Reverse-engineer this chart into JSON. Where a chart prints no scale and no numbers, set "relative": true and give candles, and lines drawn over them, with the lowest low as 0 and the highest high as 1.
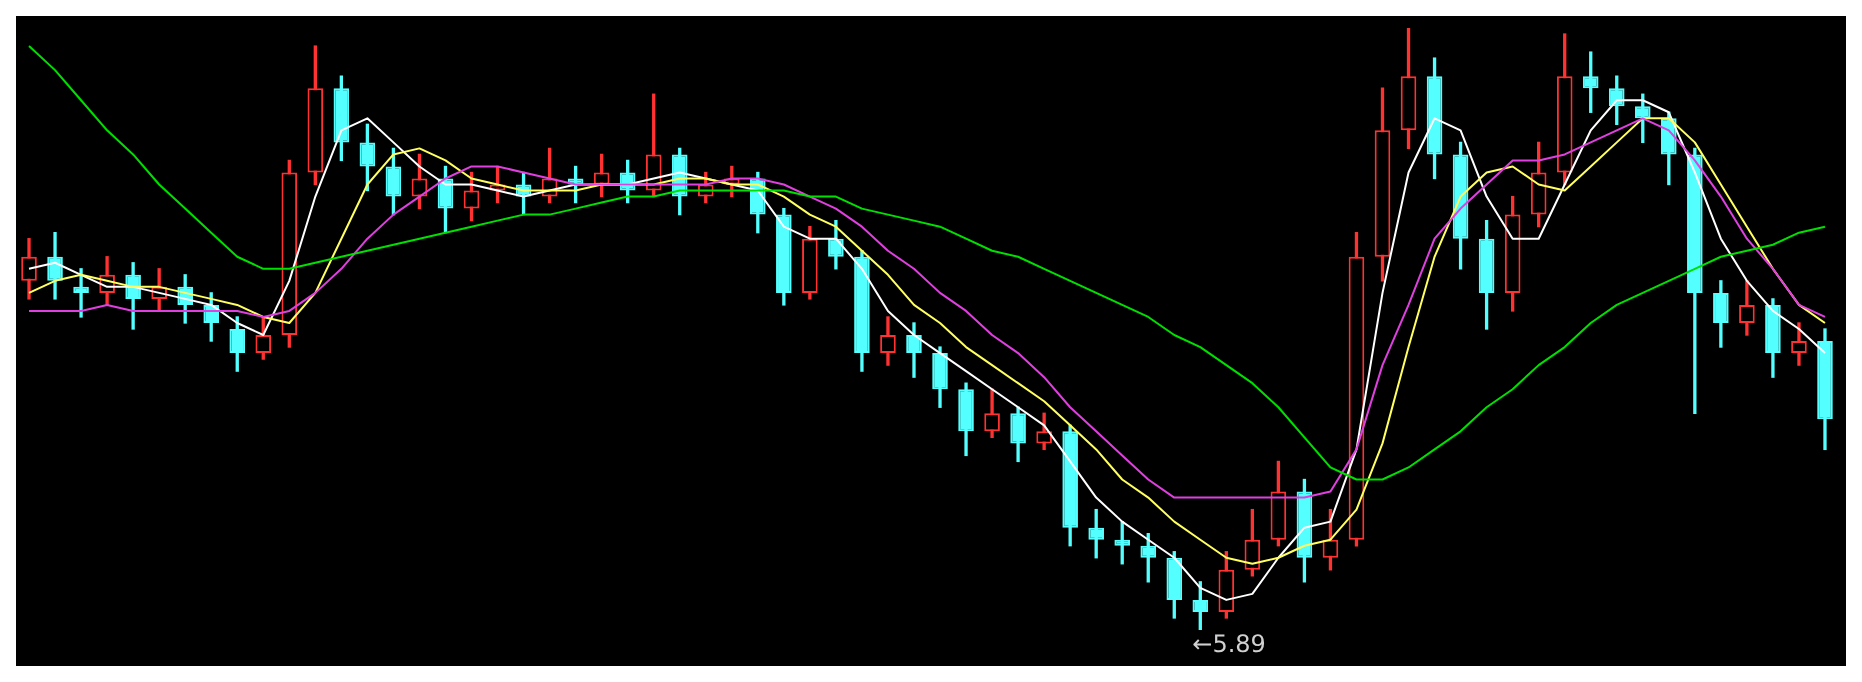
{
  "chart_data": {
    "type": "candlestick",
    "relative": true,
    "categories": [
      null,
      null,
      null,
      null,
      null,
      null,
      null,
      null,
      null,
      null,
      null,
      null,
      null,
      null,
      null,
      null,
      null,
      null,
      null,
      null,
      null,
      null,
      null,
      null,
      null,
      null,
      null,
      null,
      null,
      null,
      null,
      null,
      null,
      null,
      null,
      null,
      null,
      null,
      null,
      null,
      null,
      null,
      null,
      null,
      null,
      null,
      null,
      null,
      null,
      null,
      null,
      null,
      null,
      null,
      null,
      null,
      null,
      null,
      null,
      null,
      null,
      null,
      null,
      null,
      null,
      null,
      null,
      null,
      null,
      null
    ],
    "annotations": [
      "←5.89"
    ],
    "series": [
      {
        "type": "line",
        "color": "#00e000",
        "values": [
          0.97,
          0.93,
          0.88,
          0.83,
          0.79,
          0.74,
          0.7,
          0.66,
          0.62,
          0.6,
          0.6,
          0.61,
          0.62,
          0.63,
          0.64,
          0.65,
          0.66,
          0.67,
          0.68,
          0.69,
          0.69,
          0.7,
          0.71,
          0.72,
          0.72,
          0.73,
          0.73,
          0.73,
          0.73,
          0.73,
          0.72,
          0.72,
          0.7,
          0.69,
          0.68,
          0.67,
          0.65,
          0.63,
          0.62,
          0.6,
          0.58,
          0.56,
          0.54,
          0.52,
          0.49,
          0.47,
          0.44,
          0.41,
          0.37,
          0.32,
          0.27,
          0.25,
          0.25,
          0.27,
          0.3,
          0.33,
          0.37,
          0.4,
          0.44,
          0.47,
          0.51,
          0.54,
          0.56,
          0.58,
          0.6,
          0.62,
          0.63,
          0.64,
          0.66,
          0.67
        ]
      },
      {
        "type": "line",
        "color": "#e040e0",
        "values": [
          0.53,
          0.53,
          0.53,
          0.54,
          0.53,
          0.53,
          0.53,
          0.53,
          0.53,
          0.52,
          0.53,
          0.56,
          0.6,
          0.65,
          0.69,
          0.72,
          0.75,
          0.77,
          0.77,
          0.76,
          0.75,
          0.74,
          0.74,
          0.74,
          0.74,
          0.74,
          0.74,
          0.75,
          0.75,
          0.74,
          0.72,
          0.7,
          0.67,
          0.63,
          0.6,
          0.56,
          0.53,
          0.49,
          0.46,
          0.42,
          0.37,
          0.33,
          0.29,
          0.25,
          0.22,
          0.22,
          0.22,
          0.22,
          0.22,
          0.22,
          0.23,
          0.3,
          0.44,
          0.54,
          0.65,
          0.7,
          0.74,
          0.78,
          0.78,
          0.79,
          0.81,
          0.83,
          0.85,
          0.83,
          0.78,
          0.72,
          0.65,
          0.6,
          0.54,
          0.52
        ]
      },
      {
        "type": "line",
        "color": "#ffff60",
        "values": [
          0.56,
          0.58,
          0.59,
          0.58,
          0.57,
          0.57,
          0.56,
          0.55,
          0.54,
          0.52,
          0.51,
          0.56,
          0.65,
          0.74,
          0.79,
          0.8,
          0.78,
          0.75,
          0.74,
          0.73,
          0.73,
          0.73,
          0.74,
          0.74,
          0.74,
          0.75,
          0.75,
          0.74,
          0.74,
          0.72,
          0.69,
          0.67,
          0.63,
          0.59,
          0.54,
          0.51,
          0.47,
          0.44,
          0.41,
          0.38,
          0.34,
          0.3,
          0.25,
          0.22,
          0.18,
          0.15,
          0.12,
          0.11,
          0.12,
          0.14,
          0.15,
          0.2,
          0.31,
          0.47,
          0.62,
          0.72,
          0.76,
          0.77,
          0.74,
          0.73,
          0.77,
          0.81,
          0.85,
          0.85,
          0.81,
          0.74,
          0.67,
          0.6,
          0.54,
          0.51
        ]
      },
      {
        "type": "line",
        "color": "#ffffff",
        "values": [
          0.6,
          0.61,
          0.59,
          0.57,
          0.57,
          0.56,
          0.55,
          0.54,
          0.51,
          0.49,
          0.58,
          0.72,
          0.83,
          0.85,
          0.81,
          0.77,
          0.74,
          0.74,
          0.73,
          0.72,
          0.73,
          0.74,
          0.74,
          0.74,
          0.75,
          0.76,
          0.75,
          0.74,
          0.73,
          0.67,
          0.65,
          0.65,
          0.6,
          0.53,
          0.49,
          0.46,
          0.43,
          0.4,
          0.37,
          0.34,
          0.28,
          0.22,
          0.18,
          0.15,
          0.12,
          0.07,
          0.05,
          0.06,
          0.12,
          0.17,
          0.18,
          0.3,
          0.56,
          0.76,
          0.85,
          0.83,
          0.72,
          0.65,
          0.65,
          0.74,
          0.83,
          0.88,
          0.88,
          0.86,
          0.76,
          0.65,
          0.58,
          0.53,
          0.5,
          0.46
        ]
      },
      {
        "type": "candlestick",
        "colors": [
          "#ff3232",
          "#54ffff",
          "#54ffff",
          "#ff3232",
          "#54ffff",
          "#ff3232",
          "#54ffff",
          "#54ffff",
          "#54ffff",
          "#ff3232",
          "#ff3232",
          "#ff3232",
          "#54ffff",
          "#54ffff",
          "#54ffff",
          "#ff3232",
          "#54ffff",
          "#ff3232",
          "#ff3232",
          "#54ffff",
          "#ff3232",
          "#54ffff",
          "#ff3232",
          "#54ffff",
          "#ff3232",
          "#54ffff",
          "#ff3232",
          "#ff3232",
          "#54ffff",
          "#54ffff",
          "#ff3232",
          "#54ffff",
          "#54ffff",
          "#ff3232",
          "#54ffff",
          "#54ffff",
          "#54ffff",
          "#ff3232",
          "#54ffff",
          "#ff3232",
          "#54ffff",
          "#54ffff",
          "#54ffff",
          "#54ffff",
          "#54ffff",
          "#54ffff",
          "#ff3232",
          "#ff3232",
          "#ff3232",
          "#54ffff",
          "#ff3232",
          "#ff3232",
          "#ff3232",
          "#ff3232",
          "#54ffff",
          "#54ffff",
          "#54ffff",
          "#ff3232",
          "#ff3232",
          "#ff3232",
          "#54ffff",
          "#54ffff",
          "#54ffff",
          "#54ffff",
          "#54ffff",
          "#54ffff",
          "#ff3232",
          "#54ffff",
          "#ff3232",
          "#54ffff"
        ],
        "ohlc": [
          [
            0.58,
            0.65,
            0.55,
            0.62
          ],
          [
            0.62,
            0.66,
            0.55,
            0.58
          ],
          [
            0.57,
            0.6,
            0.52,
            0.56
          ],
          [
            0.56,
            0.62,
            0.54,
            0.59
          ],
          [
            0.59,
            0.61,
            0.5,
            0.55
          ],
          [
            0.55,
            0.6,
            0.53,
            0.57
          ],
          [
            0.57,
            0.59,
            0.51,
            0.54
          ],
          [
            0.54,
            0.56,
            0.48,
            0.51
          ],
          [
            0.5,
            0.52,
            0.43,
            0.46
          ],
          [
            0.46,
            0.52,
            0.45,
            0.49
          ],
          [
            0.49,
            0.78,
            0.47,
            0.76
          ],
          [
            0.76,
            0.97,
            0.74,
            0.9
          ],
          [
            0.9,
            0.92,
            0.78,
            0.81
          ],
          [
            0.81,
            0.84,
            0.73,
            0.77
          ],
          [
            0.77,
            0.8,
            0.69,
            0.72
          ],
          [
            0.72,
            0.79,
            0.7,
            0.75
          ],
          [
            0.75,
            0.77,
            0.66,
            0.7
          ],
          [
            0.7,
            0.76,
            0.68,
            0.73
          ],
          [
            0.73,
            0.77,
            0.71,
            0.74
          ],
          [
            0.74,
            0.76,
            0.69,
            0.72
          ],
          [
            0.72,
            0.8,
            0.71,
            0.75
          ],
          [
            0.75,
            0.77,
            0.71,
            0.74
          ],
          [
            0.74,
            0.79,
            0.72,
            0.76
          ],
          [
            0.76,
            0.78,
            0.71,
            0.73
          ],
          [
            0.73,
            0.89,
            0.72,
            0.79
          ],
          [
            0.79,
            0.8,
            0.69,
            0.72
          ],
          [
            0.72,
            0.76,
            0.71,
            0.74
          ],
          [
            0.74,
            0.77,
            0.72,
            0.75
          ],
          [
            0.75,
            0.76,
            0.66,
            0.69
          ],
          [
            0.69,
            0.7,
            0.54,
            0.56
          ],
          [
            0.56,
            0.67,
            0.55,
            0.65
          ],
          [
            0.65,
            0.68,
            0.6,
            0.62
          ],
          [
            0.62,
            0.63,
            0.43,
            0.46
          ],
          [
            0.46,
            0.52,
            0.44,
            0.49
          ],
          [
            0.49,
            0.51,
            0.42,
            0.46
          ],
          [
            0.46,
            0.47,
            0.37,
            0.4
          ],
          [
            0.4,
            0.41,
            0.29,
            0.33
          ],
          [
            0.33,
            0.4,
            0.32,
            0.36
          ],
          [
            0.36,
            0.37,
            0.28,
            0.31
          ],
          [
            0.31,
            0.36,
            0.3,
            0.33
          ],
          [
            0.33,
            0.34,
            0.14,
            0.17
          ],
          [
            0.17,
            0.2,
            0.12,
            0.15
          ],
          [
            0.15,
            0.18,
            0.11,
            0.14
          ],
          [
            0.14,
            0.16,
            0.08,
            0.12
          ],
          [
            0.12,
            0.13,
            0.02,
            0.05
          ],
          [
            0.05,
            0.08,
            0,
            0.03
          ],
          [
            0.03,
            0.13,
            0.02,
            0.1
          ],
          [
            0.1,
            0.2,
            0.09,
            0.15
          ],
          [
            0.15,
            0.28,
            0.14,
            0.23
          ],
          [
            0.23,
            0.25,
            0.08,
            0.12
          ],
          [
            0.12,
            0.2,
            0.1,
            0.15
          ],
          [
            0.15,
            0.66,
            0.14,
            0.62
          ],
          [
            0.62,
            0.9,
            0.58,
            0.83
          ],
          [
            0.83,
            1,
            0.8,
            0.92
          ],
          [
            0.92,
            0.95,
            0.75,
            0.79
          ],
          [
            0.79,
            0.81,
            0.6,
            0.65
          ],
          [
            0.65,
            0.68,
            0.5,
            0.56
          ],
          [
            0.56,
            0.72,
            0.53,
            0.69
          ],
          [
            0.69,
            0.81,
            0.67,
            0.76
          ],
          [
            0.76,
            0.99,
            0.74,
            0.92
          ],
          [
            0.92,
            0.96,
            0.86,
            0.9
          ],
          [
            0.9,
            0.92,
            0.84,
            0.87
          ],
          [
            0.87,
            0.89,
            0.81,
            0.85
          ],
          [
            0.85,
            0.86,
            0.74,
            0.79
          ],
          [
            0.79,
            0.8,
            0.36,
            0.56
          ],
          [
            0.56,
            0.58,
            0.47,
            0.51
          ],
          [
            0.51,
            0.58,
            0.49,
            0.54
          ],
          [
            0.54,
            0.55,
            0.42,
            0.46
          ],
          [
            0.46,
            0.51,
            0.44,
            0.48
          ],
          [
            0.48,
            0.5,
            0.3,
            0.35
          ]
        ]
      }
    ]
  }
}
